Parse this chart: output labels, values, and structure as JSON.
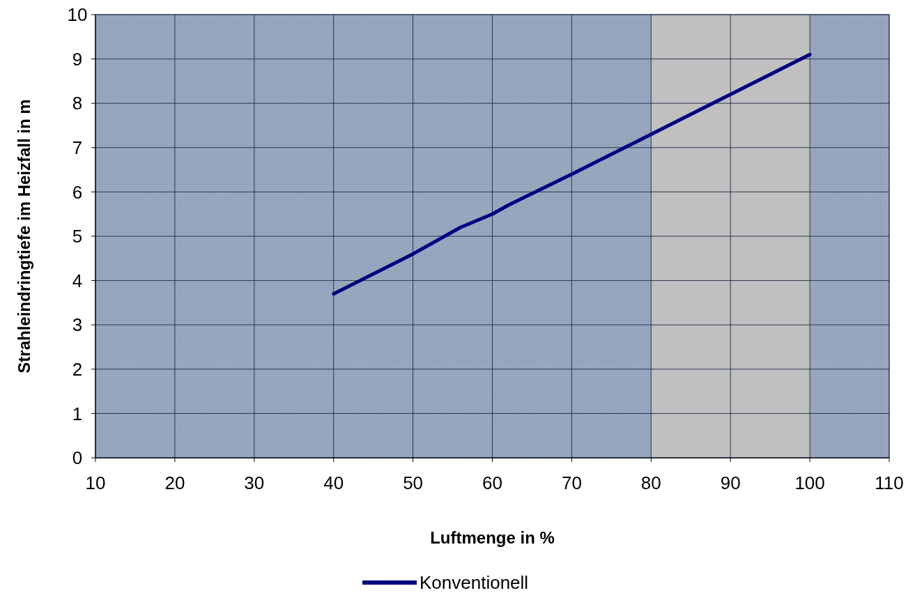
{
  "chart_data": {
    "type": "line",
    "xlabel": "Luftmenge in %",
    "ylabel": "Strahleindringtiefe im Heizfall in m",
    "x": [
      40,
      50,
      56,
      60,
      62,
      70,
      80,
      90,
      100
    ],
    "series": [
      {
        "name": "Konventionell",
        "color": "#000080",
        "values": [
          3.7,
          4.6,
          5.2,
          5.5,
          5.7,
          6.4,
          7.3,
          8.2,
          9.1
        ]
      }
    ],
    "xlim": [
      10,
      110
    ],
    "xticks": [
      10,
      20,
      30,
      40,
      50,
      60,
      70,
      80,
      90,
      100,
      110
    ],
    "ylim": [
      0,
      10
    ],
    "yticks": [
      0,
      1,
      2,
      3,
      4,
      5,
      6,
      7,
      8,
      9,
      10
    ],
    "bands": [
      {
        "axis": "x",
        "from": 80,
        "to": 100,
        "color": "#c0c0c0"
      }
    ],
    "grid": true,
    "legend": "bottom",
    "marker": "none",
    "line_style": "solid"
  }
}
